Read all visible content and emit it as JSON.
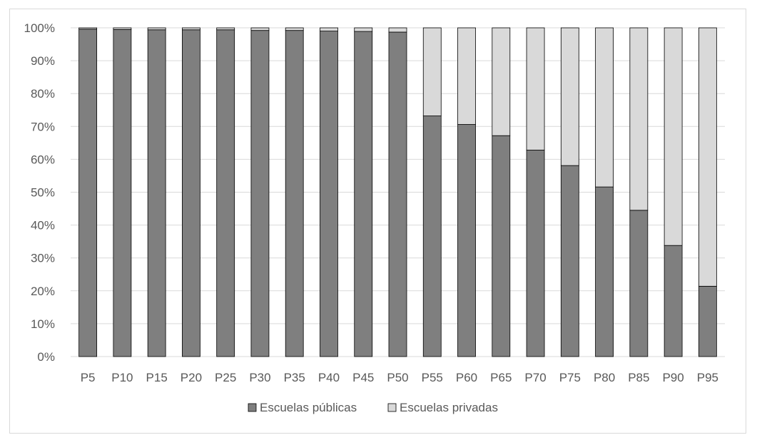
{
  "chart_data": {
    "type": "bar",
    "stacked": true,
    "percent_stacked": true,
    "categories": [
      "P5",
      "P10",
      "P15",
      "P20",
      "P25",
      "P30",
      "P35",
      "P40",
      "P45",
      "P50",
      "P55",
      "P60",
      "P65",
      "P70",
      "P75",
      "P80",
      "P85",
      "P90",
      "P95"
    ],
    "series": [
      {
        "name": "Escuelas públicas",
        "color": "#7f7f7f",
        "values": [
          99.6,
          99.5,
          99.4,
          99.4,
          99.4,
          99.2,
          99.2,
          99.0,
          98.9,
          98.7,
          73.2,
          70.6,
          67.2,
          62.8,
          58.1,
          51.6,
          44.5,
          33.8,
          21.4
        ]
      },
      {
        "name": "Escuelas privadas",
        "color": "#d9d9d9",
        "values": [
          0.4,
          0.5,
          0.6,
          0.6,
          0.6,
          0.8,
          0.8,
          1.0,
          1.1,
          1.3,
          26.8,
          29.4,
          32.8,
          37.2,
          41.9,
          48.4,
          55.5,
          66.2,
          78.6
        ]
      }
    ],
    "ylim": [
      0,
      100
    ],
    "yticks": [
      "0%",
      "10%",
      "20%",
      "30%",
      "40%",
      "50%",
      "60%",
      "70%",
      "80%",
      "90%",
      "100%"
    ],
    "grid": true,
    "legend_position": "bottom",
    "title": "",
    "xlabel": "",
    "ylabel": ""
  }
}
